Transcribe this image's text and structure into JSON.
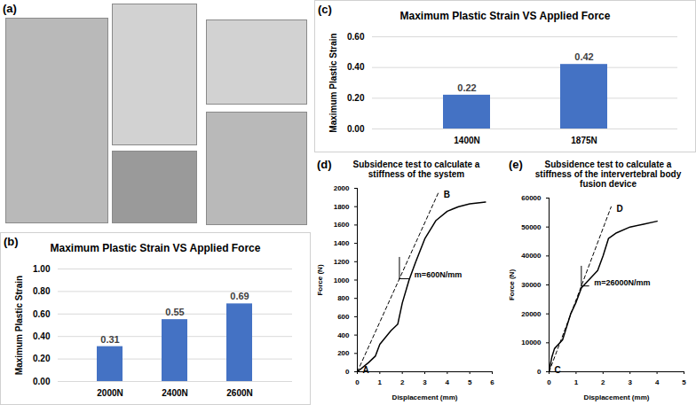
{
  "photo_panel": {
    "panel": "(a)"
  },
  "chart_data": [
    {
      "type": "bar",
      "panel": "(b)",
      "title": "Maximum Plastic Strain VS Applied Force",
      "y_label": "Maximum Plastic Strain",
      "categories": [
        "2000N",
        "2400N",
        "2600N"
      ],
      "values": [
        0.31,
        0.55,
        0.69
      ],
      "color": "#4472c4",
      "ylim": [
        0,
        1
      ],
      "yticks": [
        {
          "value": 0,
          "label": "0.00"
        },
        {
          "value": 0.2,
          "label": "0.20"
        },
        {
          "value": 0.4,
          "label": "0.40"
        },
        {
          "value": 0.6,
          "label": "0.60"
        },
        {
          "value": 0.8,
          "label": "0.80"
        },
        {
          "value": 1,
          "label": "1.00"
        }
      ],
      "grid": true,
      "data_labels": true
    },
    {
      "type": "bar",
      "panel": "(c)",
      "title": "Maximum Plastic Strain VS Applied Force",
      "y_label": "Maximum Plastic Strain",
      "categories": [
        "1400N",
        "1875N"
      ],
      "values": [
        0.22,
        0.42
      ],
      "color": "#4472c4",
      "ylim": [
        0,
        0.6
      ],
      "yticks": [
        {
          "value": 0,
          "label": "0.00"
        },
        {
          "value": 0.2,
          "label": "0.20"
        },
        {
          "value": 0.4,
          "label": "0.40"
        },
        {
          "value": 0.6,
          "label": "0.60"
        }
      ],
      "grid": true,
      "data_labels": true
    },
    {
      "type": "line",
      "panel": "(d)",
      "title": "Subsidence test to calculate a stiffness of the system",
      "x_label": "Displacement (mm)",
      "y_label": "Force (N)",
      "xlim": [
        0,
        6
      ],
      "xticks": [
        0,
        1,
        2,
        3,
        4,
        5,
        6
      ],
      "ylim": [
        0,
        2000
      ],
      "yticks": [
        0,
        200,
        400,
        600,
        800,
        1000,
        1200,
        1400,
        1600,
        1800,
        2000
      ],
      "annotation": "m=600N/mm",
      "series": [
        {
          "color": "#000000",
          "line_style": "solid",
          "x": [
            0,
            0.5,
            0.8,
            1.0,
            1.5,
            1.8,
            2.0,
            2.3,
            2.6,
            3.0,
            3.5,
            4.0,
            4.5,
            5.0,
            5.7
          ],
          "values": [
            0,
            100,
            170,
            300,
            450,
            520,
            750,
            1000,
            1200,
            1450,
            1650,
            1750,
            1800,
            1830,
            1850
          ]
        },
        {
          "color": "#000000",
          "line_style": "dashed",
          "x": [
            0,
            3.6
          ],
          "values": [
            0,
            1950
          ],
          "labels": [
            "A",
            "B"
          ]
        }
      ]
    },
    {
      "type": "line",
      "panel": "(e)",
      "title": "Subsidence test to calculate a stiffness of the intervertebral body fusion device",
      "x_label": "Displacement (mm)",
      "y_label": "Force (N)",
      "xlim": [
        0,
        5
      ],
      "xticks": [
        0,
        1,
        2,
        3,
        4,
        5
      ],
      "ylim": [
        0,
        60000
      ],
      "yticks": [
        0,
        10000,
        20000,
        30000,
        40000,
        50000,
        60000
      ],
      "annotation": "m=26000N/mm",
      "series": [
        {
          "color": "#000000",
          "line_style": "solid",
          "x": [
            0,
            0.1,
            0.2,
            0.5,
            0.6,
            0.8,
            1.0,
            1.2,
            1.4,
            1.6,
            1.8,
            2.0,
            2.2,
            2.5,
            3.0,
            3.5,
            4.0
          ],
          "values": [
            0,
            5000,
            8000,
            11000,
            14000,
            20000,
            24000,
            29000,
            31000,
            33000,
            35000,
            40000,
            46000,
            48000,
            50000,
            51000,
            52000
          ]
        },
        {
          "color": "#000000",
          "line_style": "dashed",
          "x": [
            0,
            2.3
          ],
          "values": [
            0,
            57000
          ],
          "labels": [
            "C",
            "D"
          ]
        }
      ]
    }
  ]
}
